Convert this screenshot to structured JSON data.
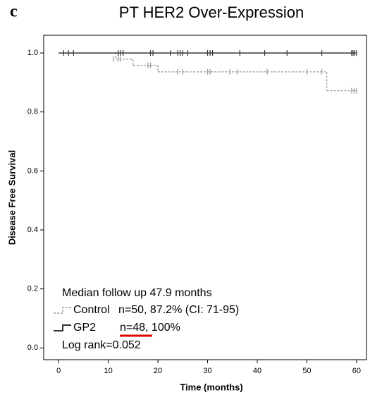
{
  "panel_label": "c",
  "chart_data": {
    "type": "step",
    "title": "PT HER2 Over-Expression",
    "x_label": "Time (months)",
    "y_label": "Disease Free Survival",
    "xlim": [
      -3,
      62
    ],
    "ylim": [
      -0.04,
      1.06
    ],
    "xticks": [
      0,
      10,
      20,
      30,
      40,
      50,
      60
    ],
    "yticks": [
      {
        "value": 0,
        "label": "0.0"
      },
      0.2,
      0.4,
      0.6,
      0.8,
      {
        "value": 1,
        "label": "1.0"
      }
    ],
    "series": [
      {
        "name": "Control",
        "color": "#999999",
        "dashed": true,
        "x": [
          0,
          11.5,
          15,
          20,
          54,
          60
        ],
        "values": [
          1,
          0.979,
          0.958,
          0.936,
          0.872,
          0.872
        ],
        "censor_x": [
          11,
          12,
          12.5,
          18,
          18.5,
          24,
          25,
          30,
          30.5,
          34.5,
          36,
          42,
          50,
          53,
          59,
          59.5,
          60
        ],
        "censor_values": [
          0.979,
          0.979,
          0.979,
          0.958,
          0.958,
          0.936,
          0.936,
          0.936,
          0.936,
          0.936,
          0.936,
          0.936,
          0.936,
          0.936,
          0.872,
          0.872,
          0.872
        ]
      },
      {
        "name": "GP2",
        "color": "#333333",
        "dashed": false,
        "x": [
          0,
          60
        ],
        "values": [
          1,
          1
        ],
        "censor_x": [
          1,
          2,
          3,
          12,
          12.5,
          13,
          18.5,
          19,
          22.5,
          24,
          24.5,
          25,
          26,
          30,
          30.5,
          31,
          36.5,
          41.5,
          46,
          53,
          59,
          59.3,
          59.6,
          60
        ],
        "censor_values": [
          1,
          1,
          1,
          1,
          1,
          1,
          1,
          1,
          1,
          1,
          1,
          1,
          1,
          1,
          1,
          1,
          1,
          1,
          1,
          1,
          1,
          1,
          1,
          1
        ]
      }
    ],
    "annotations": [
      "Median follow up 47.9 months",
      "n=50, 87.2% (CI: 71-95)",
      "n=48, 100%",
      "Log rank=0.052"
    ]
  }
}
